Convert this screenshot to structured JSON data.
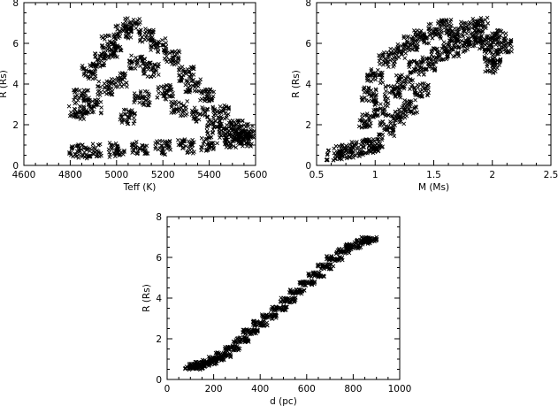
{
  "chart_data": [
    {
      "type": "scatter",
      "marker": "x",
      "xlabel": "Teff (K)",
      "ylabel": "R (Rs)",
      "xlim": [
        4600,
        5600
      ],
      "ylim": [
        0,
        8
      ],
      "xticks": [
        4600,
        4800,
        5000,
        5200,
        5400,
        5600
      ],
      "yticks": [
        0,
        2,
        4,
        6,
        8
      ],
      "grid": false,
      "points": [
        [
          4830,
          2.6
        ],
        [
          4850,
          3.4
        ],
        [
          4880,
          4.6
        ],
        [
          4900,
          2.9
        ],
        [
          4920,
          5.2
        ],
        [
          4950,
          3.8
        ],
        [
          4970,
          6.1
        ],
        [
          4990,
          5.6
        ],
        [
          5010,
          4.2
        ],
        [
          5030,
          6.6
        ],
        [
          5050,
          2.4
        ],
        [
          5070,
          6.9
        ],
        [
          5090,
          5.1
        ],
        [
          5110,
          3.3
        ],
        [
          5130,
          6.4
        ],
        [
          5150,
          4.7
        ],
        [
          5180,
          5.9
        ],
        [
          5210,
          3.6
        ],
        [
          5240,
          5.3
        ],
        [
          5270,
          2.8
        ],
        [
          5300,
          4.5
        ],
        [
          5330,
          3.9
        ],
        [
          5360,
          2.5
        ],
        [
          5390,
          3.4
        ],
        [
          5420,
          1.9
        ],
        [
          5450,
          2.6
        ],
        [
          5480,
          1.6
        ],
        [
          5510,
          1.9
        ],
        [
          5540,
          1.4
        ],
        [
          5560,
          1.7
        ],
        [
          4830,
          0.7
        ],
        [
          4900,
          0.7
        ],
        [
          5000,
          0.75
        ],
        [
          5100,
          0.8
        ],
        [
          5200,
          0.85
        ],
        [
          5300,
          0.95
        ],
        [
          5400,
          1.05
        ],
        [
          5500,
          1.2
        ],
        [
          5550,
          1.3
        ]
      ]
    },
    {
      "type": "scatter",
      "marker": "x",
      "xlabel": "M (Ms)",
      "ylabel": "R (Rs)",
      "xlim": [
        0.5,
        2.5
      ],
      "ylim": [
        0,
        8
      ],
      "xticks": [
        0.5,
        1.0,
        1.5,
        2.0,
        2.5
      ],
      "yticks": [
        0,
        2,
        4,
        6,
        8
      ],
      "grid": false,
      "points": [
        [
          0.65,
          0.6
        ],
        [
          0.75,
          0.7
        ],
        [
          0.85,
          0.8
        ],
        [
          0.95,
          0.95
        ],
        [
          1.0,
          1.0
        ],
        [
          0.92,
          2.2
        ],
        [
          0.95,
          3.5
        ],
        [
          1.0,
          4.4
        ],
        [
          1.05,
          2.8
        ],
        [
          1.1,
          5.2
        ],
        [
          1.15,
          3.6
        ],
        [
          1.2,
          5.6
        ],
        [
          1.25,
          4.1
        ],
        [
          1.3,
          6.0
        ],
        [
          1.35,
          4.8
        ],
        [
          1.4,
          6.3
        ],
        [
          1.45,
          5.0
        ],
        [
          1.5,
          6.6
        ],
        [
          1.55,
          5.4
        ],
        [
          1.6,
          6.8
        ],
        [
          1.65,
          5.7
        ],
        [
          1.7,
          6.4
        ],
        [
          1.75,
          5.9
        ],
        [
          1.8,
          6.7
        ],
        [
          1.85,
          6.2
        ],
        [
          1.9,
          6.9
        ],
        [
          1.95,
          6.0
        ],
        [
          2.0,
          5.4
        ],
        [
          2.05,
          6.3
        ],
        [
          2.1,
          5.9
        ],
        [
          2.0,
          4.9
        ],
        [
          1.3,
          2.9
        ],
        [
          1.2,
          2.4
        ],
        [
          1.1,
          1.8
        ],
        [
          1.4,
          3.7
        ]
      ]
    },
    {
      "type": "scatter",
      "marker": "x",
      "xlabel": "d (pc)",
      "ylabel": "R (Rs)",
      "xlim": [
        0,
        1000
      ],
      "ylim": [
        0,
        8
      ],
      "xticks": [
        0,
        200,
        400,
        600,
        800,
        1000
      ],
      "yticks": [
        0,
        2,
        4,
        6,
        8
      ],
      "grid": false,
      "points": [
        [
          110,
          0.6
        ],
        [
          130,
          0.65
        ],
        [
          150,
          0.75
        ],
        [
          180,
          0.85
        ],
        [
          210,
          1.0
        ],
        [
          240,
          1.2
        ],
        [
          280,
          1.55
        ],
        [
          320,
          1.95
        ],
        [
          360,
          2.35
        ],
        [
          400,
          2.75
        ],
        [
          440,
          3.1
        ],
        [
          480,
          3.5
        ],
        [
          520,
          3.9
        ],
        [
          560,
          4.3
        ],
        [
          600,
          4.75
        ],
        [
          640,
          5.15
        ],
        [
          680,
          5.55
        ],
        [
          720,
          5.95
        ],
        [
          760,
          6.3
        ],
        [
          800,
          6.55
        ],
        [
          840,
          6.75
        ],
        [
          870,
          6.9
        ]
      ]
    }
  ]
}
